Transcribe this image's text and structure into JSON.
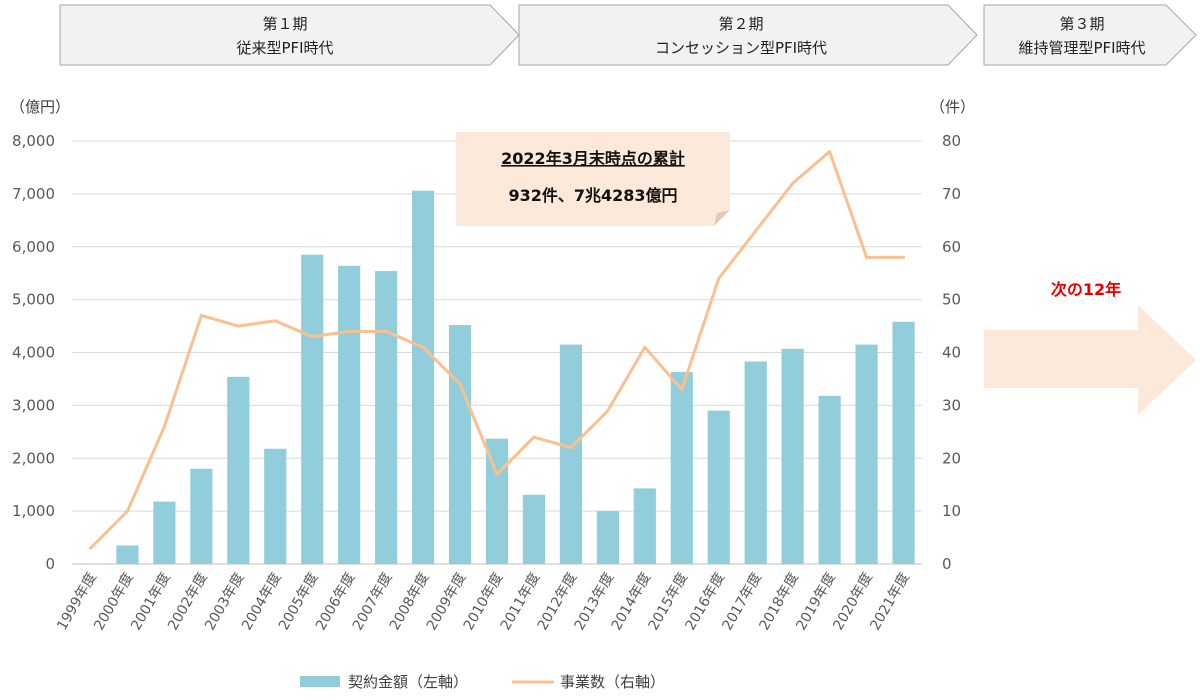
{
  "phases": [
    {
      "title": "第１期",
      "subtitle": "従来型PFI時代"
    },
    {
      "title": "第２期",
      "subtitle": "コンセッション型PFI時代"
    },
    {
      "title": "第３期",
      "subtitle": "維持管理型PFI時代"
    }
  ],
  "callout": {
    "title": "2022年3月末時点の累計",
    "value": "932件、7兆4283億円"
  },
  "next_label": "次の12年",
  "colors": {
    "bar": "#92cddc",
    "line": "#fac090",
    "phase_fill": "#f2f2f2",
    "phase_stroke": "#a6a6a6",
    "callout_fill": "#fde9d9",
    "arrow_fill": "#fde9d9",
    "grid": "#d9d9d9",
    "next_label": "#e60000"
  },
  "chart_data": {
    "type": "bar+line",
    "categories": [
      "1999年度",
      "2000年度",
      "2001年度",
      "2002年度",
      "2003年度",
      "2004年度",
      "2005年度",
      "2006年度",
      "2007年度",
      "2008年度",
      "2009年度",
      "2010年度",
      "2011年度",
      "2012年度",
      "2013年度",
      "2014年度",
      "2015年度",
      "2016年度",
      "2017年度",
      "2018年度",
      "2019年度",
      "2020年度",
      "2021年度"
    ],
    "y_left": {
      "unit": "（億円）",
      "min": 0,
      "max": 8000,
      "ticks": [
        "0",
        "1,000",
        "2,000",
        "3,000",
        "4,000",
        "5,000",
        "6,000",
        "7,000",
        "8,000"
      ]
    },
    "y_right": {
      "unit": "（件）",
      "min": 0,
      "max": 80,
      "ticks": [
        "0",
        "10",
        "20",
        "30",
        "40",
        "50",
        "60",
        "70",
        "80"
      ]
    },
    "grid": true,
    "legend_position": "bottom",
    "series": [
      {
        "name": "契約金額（左軸）",
        "type": "bar",
        "axis": "left",
        "values": [
          0,
          350,
          1180,
          1800,
          3540,
          2180,
          5850,
          5640,
          5540,
          7060,
          4520,
          2370,
          1310,
          4150,
          1000,
          1430,
          3630,
          2900,
          3830,
          4070,
          3180,
          4150,
          4580
        ]
      },
      {
        "name": "事業数（右軸）",
        "type": "line",
        "axis": "right",
        "values": [
          3,
          10,
          26,
          47,
          45,
          46,
          43,
          44,
          44,
          41,
          34,
          17,
          24,
          22,
          29,
          41,
          33,
          54,
          63,
          72,
          78,
          58,
          58
        ]
      }
    ]
  }
}
